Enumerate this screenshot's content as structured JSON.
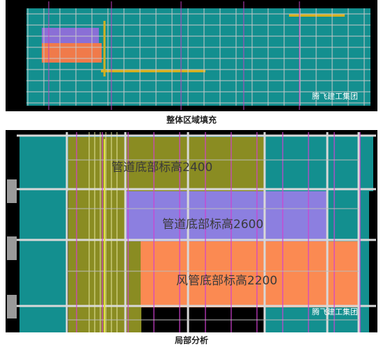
{
  "figures": [
    {
      "caption": "整体区域填充",
      "watermark": "腾飞建工集团"
    },
    {
      "caption": "局部分析",
      "watermark": "腾飞建工集团",
      "labels": [
        "管道底部标高2400",
        "管道底部标高2600",
        "风管底部标高2200"
      ]
    }
  ]
}
